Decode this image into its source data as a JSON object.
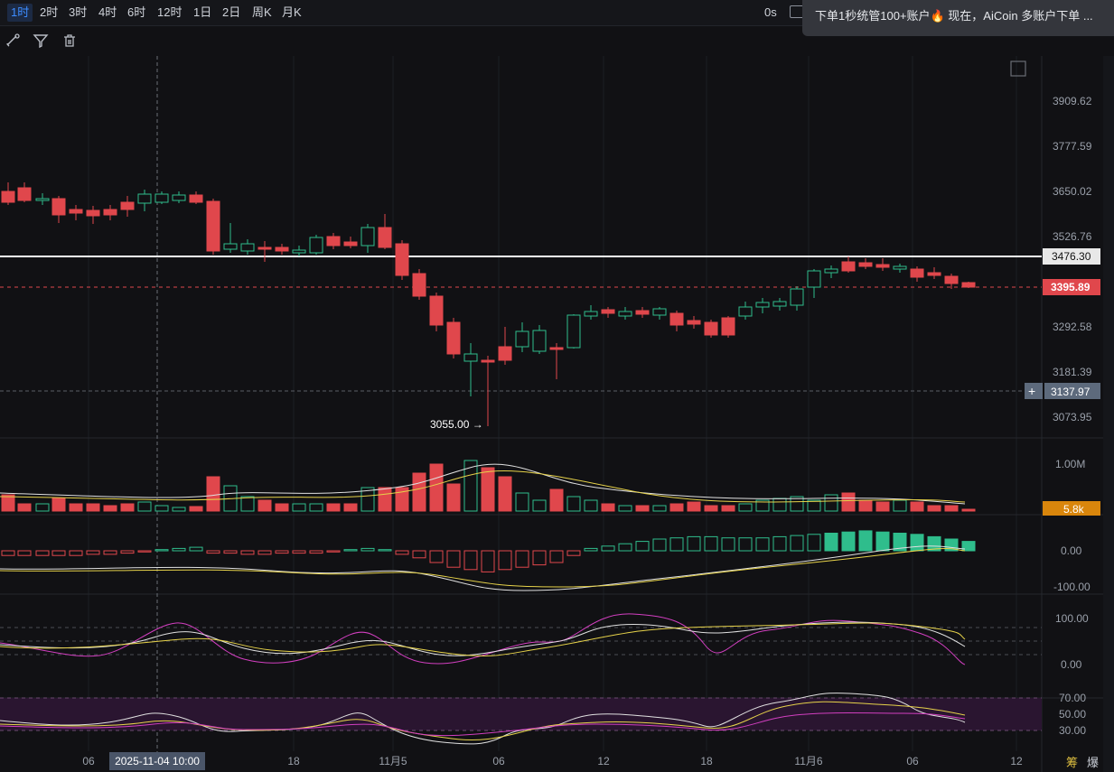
{
  "timeframes": [
    "1时",
    "2时",
    "3时",
    "4时",
    "6时",
    "12时",
    "1日",
    "2日",
    "周K",
    "月K"
  ],
  "active_timeframe": "1时",
  "countdown": "0s",
  "notification": "下单1秒统管100+账户🔥 现在，AiCoin 多账户下单 ...",
  "price_axis": [
    "3909.62",
    "3777.59",
    "3650.02",
    "3526.76",
    "3292.58",
    "3181.39",
    "3073.95"
  ],
  "price_line_white": "3476.30",
  "price_last": "3395.89",
  "price_cursor": "3137.97",
  "low_label": "3055.00 →",
  "volume_axis": "1.00M",
  "volume_last": "5.8k",
  "macd_axis": [
    "0.00",
    "-100.00"
  ],
  "kdj_axis": [
    "100.00",
    "0.00"
  ],
  "rsi_axis": [
    "70.00",
    "50.00",
    "30.00"
  ],
  "time_axis": [
    "06",
    "18",
    "11月5",
    "06",
    "12",
    "18",
    "11月6",
    "06",
    "12"
  ],
  "cursor_time": "2025-11-04 10:00",
  "bottom_buttons": [
    "筹",
    "爆"
  ],
  "colors": {
    "up": "#2fbd8c",
    "down": "#e0474c",
    "accent": "#3d8cff",
    "volume_last_bg": "#d9860c"
  },
  "icons": [
    "draw-icon",
    "filter-icon",
    "trash-icon",
    "camera-icon",
    "fullscreen-icon",
    "crosshair-plus-icon"
  ]
}
